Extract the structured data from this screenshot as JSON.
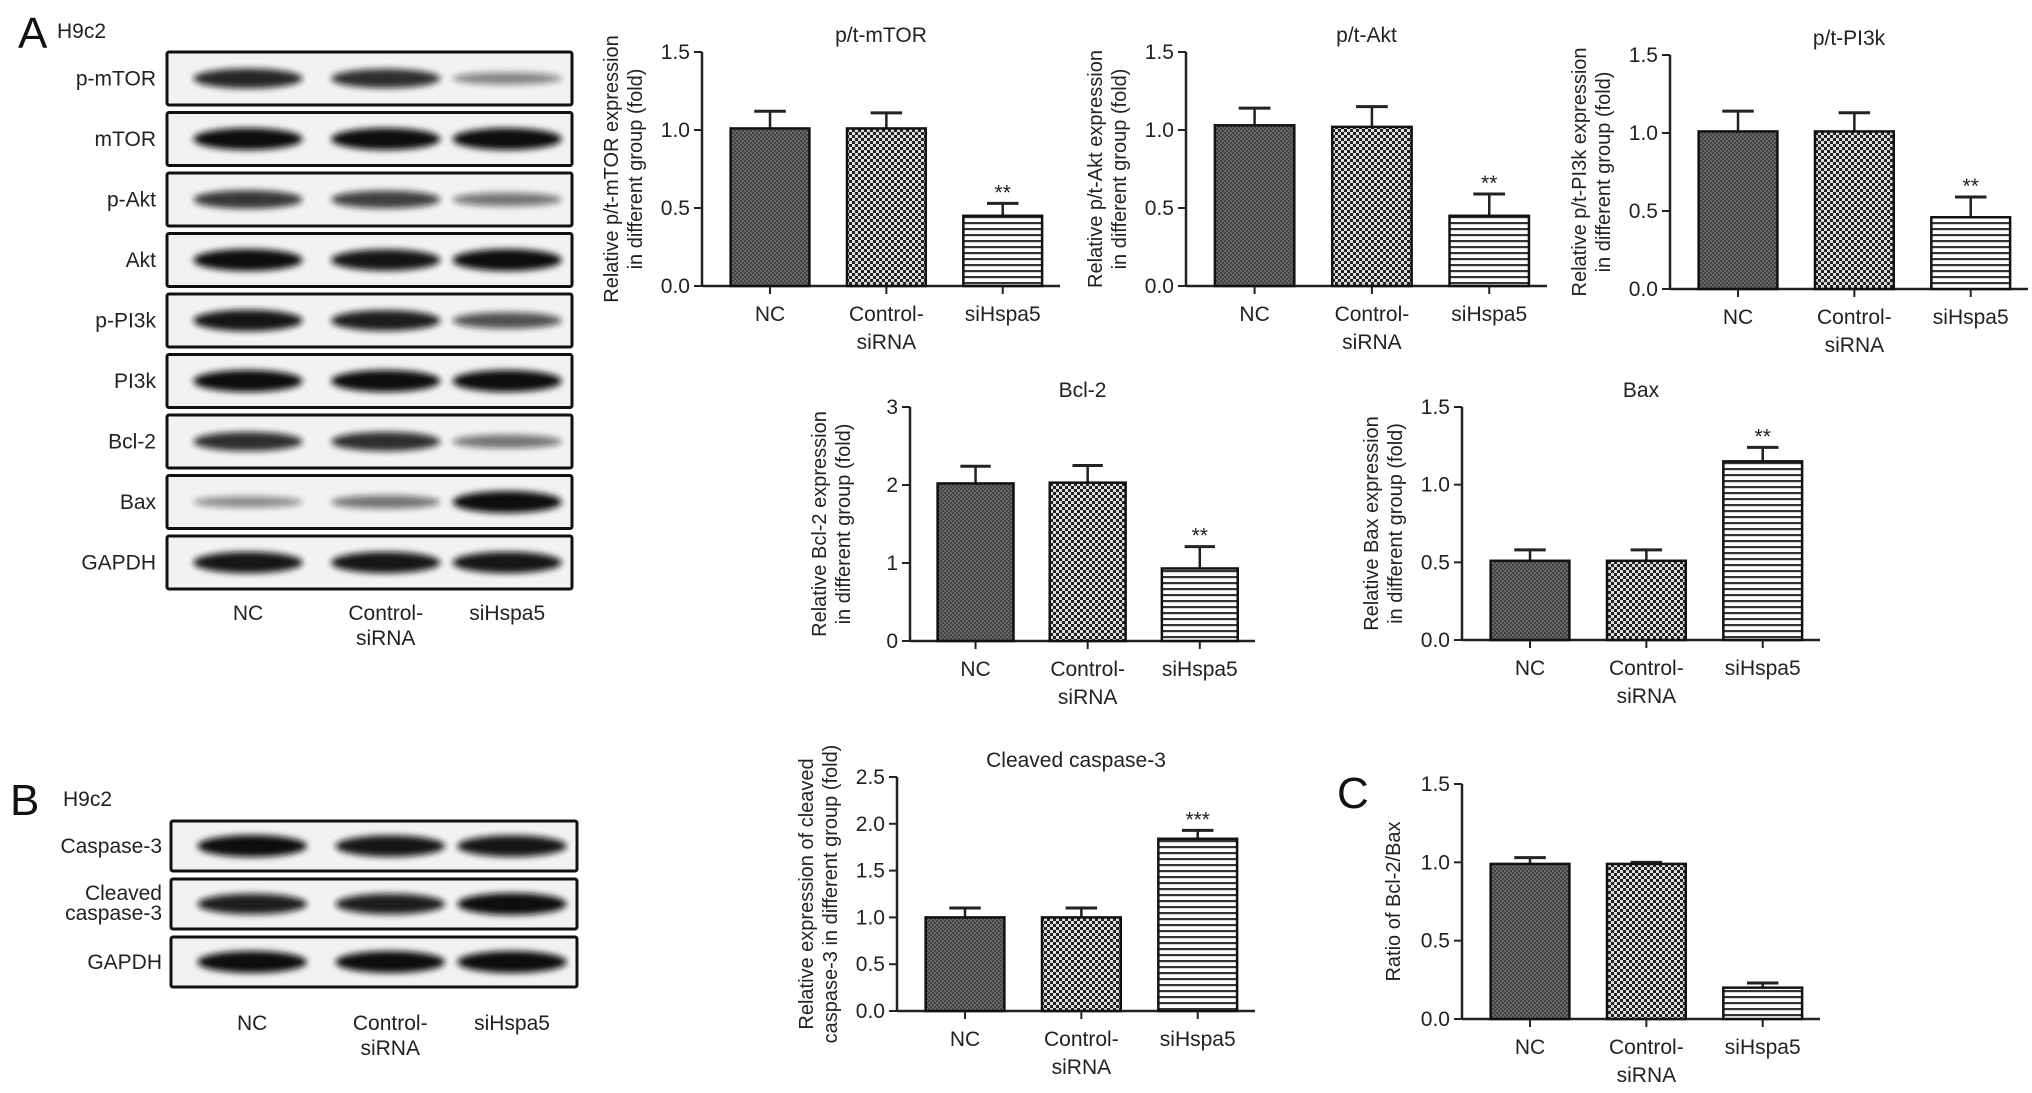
{
  "panels": {
    "a": "A",
    "b": "B",
    "c": "C"
  },
  "blots": [
    {
      "cell_line": "H9c2",
      "lanes": [
        "NC",
        "Control-",
        "siRNA",
        "siHspa5"
      ],
      "rows": [
        {
          "label": "p-mTOR",
          "intensity": [
            0.85,
            0.8,
            0.3
          ]
        },
        {
          "label": "mTOR",
          "intensity": [
            1,
            1,
            1
          ]
        },
        {
          "label": "p-Akt",
          "intensity": [
            0.75,
            0.7,
            0.4
          ]
        },
        {
          "label": "Akt",
          "intensity": [
            1,
            0.95,
            1
          ]
        },
        {
          "label": "p-PI3k",
          "intensity": [
            0.95,
            0.9,
            0.6
          ]
        },
        {
          "label": "PI3k",
          "intensity": [
            1,
            1,
            1
          ]
        },
        {
          "label": "Bcl-2",
          "intensity": [
            0.8,
            0.8,
            0.4
          ]
        },
        {
          "label": "Bax",
          "intensity": [
            0.25,
            0.4,
            1
          ]
        },
        {
          "label": "GAPDH",
          "intensity": [
            0.95,
            0.95,
            0.95
          ]
        }
      ]
    },
    {
      "cell_line": "H9c2",
      "lanes": [
        "NC",
        "Control-",
        "siRNA",
        "siHspa5"
      ],
      "rows": [
        {
          "label": "Caspase-3",
          "intensity": [
            1,
            0.95,
            0.95
          ]
        },
        {
          "label": "Cleaved caspase-3",
          "label_lines": [
            "Cleaved",
            "caspase-3"
          ],
          "intensity": [
            0.9,
            0.9,
            1
          ]
        },
        {
          "label": "GAPDH",
          "intensity": [
            1,
            1,
            1
          ]
        }
      ]
    }
  ],
  "chart_data": [
    {
      "type": "bar",
      "title": "p/t-mTOR",
      "ylabel": [
        "Relative p/t-mTOR expression",
        "in different group (fold)"
      ],
      "categories": [
        "NC",
        "Control-siRNA",
        "siHspa5"
      ],
      "category_lines": [
        [
          "NC"
        ],
        [
          "Control-",
          "siRNA"
        ],
        [
          "siHspa5"
        ]
      ],
      "values": [
        1.01,
        1.01,
        0.45
      ],
      "errors": [
        0.11,
        0.1,
        0.08
      ],
      "significance": [
        "",
        "",
        "**"
      ],
      "ylim": [
        0,
        1.5
      ],
      "ticks": [
        "0.0",
        "0.5",
        "1.0",
        "1.5"
      ],
      "tick_values": [
        0,
        0.5,
        1.0,
        1.5
      ]
    },
    {
      "type": "bar",
      "title": "p/t-Akt",
      "ylabel": [
        "Relative p/t-Akt expression",
        "in different group (fold)"
      ],
      "categories": [
        "NC",
        "Control-siRNA",
        "siHspa5"
      ],
      "category_lines": [
        [
          "NC"
        ],
        [
          "Control-",
          "siRNA"
        ],
        [
          "siHspa5"
        ]
      ],
      "values": [
        1.03,
        1.02,
        0.45
      ],
      "errors": [
        0.11,
        0.13,
        0.14
      ],
      "significance": [
        "",
        "",
        "**"
      ],
      "ylim": [
        0,
        1.5
      ],
      "ticks": [
        "0.0",
        "0.5",
        "1.0",
        "1.5"
      ],
      "tick_values": [
        0,
        0.5,
        1.0,
        1.5
      ]
    },
    {
      "type": "bar",
      "title": "p/t-PI3k",
      "ylabel": [
        "Relative p/t-PI3k expression",
        "in different group (fold)"
      ],
      "categories": [
        "NC",
        "Control-siRNA",
        "siHspa5"
      ],
      "category_lines": [
        [
          "NC"
        ],
        [
          "Control-",
          "siRNA"
        ],
        [
          "siHspa5"
        ]
      ],
      "values": [
        1.01,
        1.01,
        0.46
      ],
      "errors": [
        0.13,
        0.12,
        0.13
      ],
      "significance": [
        "",
        "",
        "**"
      ],
      "ylim": [
        0,
        1.5
      ],
      "ticks": [
        "0.0",
        "0.5",
        "1.0",
        "1.5"
      ],
      "tick_values": [
        0,
        0.5,
        1.0,
        1.5
      ]
    },
    {
      "type": "bar",
      "title": "Bcl-2",
      "ylabel": [
        "Relative Bcl-2 expression",
        "in different group (fold)"
      ],
      "categories": [
        "NC",
        "Control-siRNA",
        "siHspa5"
      ],
      "category_lines": [
        [
          "NC"
        ],
        [
          "Control-",
          "siRNA"
        ],
        [
          "siHspa5"
        ]
      ],
      "values": [
        2.02,
        2.03,
        0.93
      ],
      "errors": [
        0.22,
        0.22,
        0.28
      ],
      "significance": [
        "",
        "",
        "**"
      ],
      "ylim": [
        0,
        3
      ],
      "ticks": [
        "0",
        "1",
        "2",
        "3"
      ],
      "tick_values": [
        0,
        1,
        2,
        3
      ]
    },
    {
      "type": "bar",
      "title": "Bax",
      "ylabel": [
        "Relative Bax expression",
        "in different group (fold)"
      ],
      "categories": [
        "NC",
        "Control-siRNA",
        "siHspa5"
      ],
      "category_lines": [
        [
          "NC"
        ],
        [
          "Control-",
          "siRNA"
        ],
        [
          "siHspa5"
        ]
      ],
      "values": [
        0.51,
        0.51,
        1.15
      ],
      "errors": [
        0.07,
        0.07,
        0.09
      ],
      "significance": [
        "",
        "",
        "**"
      ],
      "ylim": [
        0,
        1.5
      ],
      "ticks": [
        "0.0",
        "0.5",
        "1.0",
        "1.5"
      ],
      "tick_values": [
        0,
        0.5,
        1.0,
        1.5
      ]
    },
    {
      "type": "bar",
      "title": "Cleaved caspase-3",
      "ylabel": [
        "Relative expression of cleaved",
        "caspase-3 in different group (fold)"
      ],
      "categories": [
        "NC",
        "Control-siRNA",
        "siHspa5"
      ],
      "category_lines": [
        [
          "NC"
        ],
        [
          "Control-",
          "siRNA"
        ],
        [
          "siHspa5"
        ]
      ],
      "values": [
        1.0,
        1.0,
        1.84
      ],
      "errors": [
        0.1,
        0.1,
        0.09
      ],
      "significance": [
        "",
        "",
        "***"
      ],
      "ylim": [
        0,
        2.5
      ],
      "ticks": [
        "0.0",
        "0.5",
        "1.0",
        "1.5",
        "2.0",
        "2.5"
      ],
      "tick_values": [
        0,
        0.5,
        1.0,
        1.5,
        2.0,
        2.5
      ]
    },
    {
      "type": "bar",
      "title": "",
      "ylabel": [
        "Ratio of Bcl-2/Bax"
      ],
      "categories": [
        "NC",
        "Control-siRNA",
        "siHspa5"
      ],
      "category_lines": [
        [
          "NC"
        ],
        [
          "Control-",
          "siRNA"
        ],
        [
          "siHspa5"
        ]
      ],
      "values": [
        0.99,
        0.99,
        0.2
      ],
      "errors": [
        0.04,
        0.01,
        0.03
      ],
      "significance": [
        "",
        "",
        ""
      ],
      "ylim": [
        0,
        1.5
      ],
      "ticks": [
        "0.0",
        "0.5",
        "1.0",
        "1.5"
      ],
      "tick_values": [
        0,
        0.5,
        1.0,
        1.5
      ]
    }
  ],
  "colors": {
    "axis": "#222222",
    "bar_nc": "#555555",
    "bar_control": "#333333",
    "bar_sihspa5": "#ffffff",
    "band": "#111111"
  }
}
